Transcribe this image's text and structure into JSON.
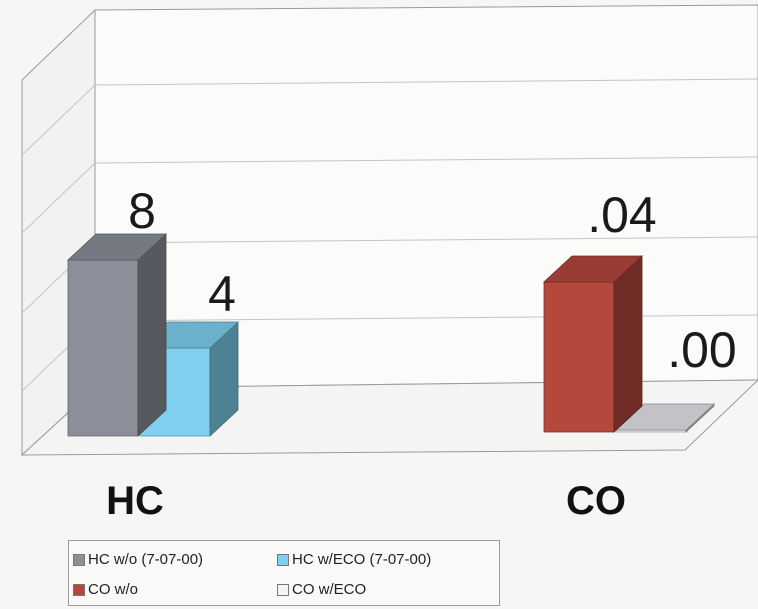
{
  "chart_data": {
    "type": "bar",
    "title": "",
    "xlabel": "",
    "ylabel": "",
    "categories": [
      "HC",
      "CO"
    ],
    "groups": [
      {
        "category": "HC",
        "bars": [
          {
            "series": "HC w/o (7-07-00)",
            "value": 8,
            "label": "8",
            "color": "#8a8f99"
          },
          {
            "series": "HC w/ECO (7-07-00)",
            "value": 4,
            "label": "4",
            "color": "#7fd0f0"
          }
        ]
      },
      {
        "category": "CO",
        "bars": [
          {
            "series": "CO w/o",
            "value": 0.04,
            "label": ".04",
            "color": "#b5473d"
          },
          {
            "series": "CO w/ECO",
            "value": 0.0,
            "label": ".00",
            "color": "#e4e4ea"
          }
        ]
      }
    ],
    "grid": true,
    "legend_position": "bottom-left",
    "legend": [
      {
        "label": "HC w/o (7-07-00)",
        "color": "#8a8f99"
      },
      {
        "label": "HC w/ECO (7-07-00)",
        "color": "#7fd0f0"
      },
      {
        "label": "CO w/o",
        "color": "#b5473d"
      },
      {
        "label": "CO w/ECO",
        "color": "#f4f4f4"
      }
    ]
  }
}
